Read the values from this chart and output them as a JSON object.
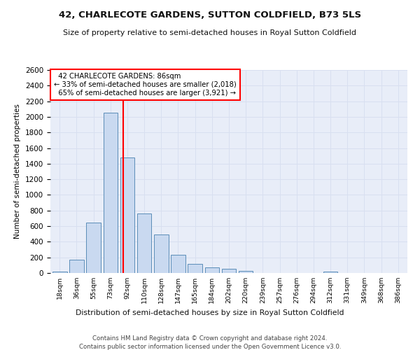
{
  "title": "42, CHARLECOTE GARDENS, SUTTON COLDFIELD, B73 5LS",
  "subtitle": "Size of property relative to semi-detached houses in Royal Sutton Coldfield",
  "xlabel": "Distribution of semi-detached houses by size in Royal Sutton Coldfield",
  "ylabel": "Number of semi-detached properties",
  "footer_line1": "Contains HM Land Registry data © Crown copyright and database right 2024.",
  "footer_line2": "Contains public sector information licensed under the Open Government Licence v3.0.",
  "bar_labels": [
    "18sqm",
    "36sqm",
    "55sqm",
    "73sqm",
    "92sqm",
    "110sqm",
    "128sqm",
    "147sqm",
    "165sqm",
    "184sqm",
    "202sqm",
    "220sqm",
    "239sqm",
    "257sqm",
    "276sqm",
    "294sqm",
    "312sqm",
    "331sqm",
    "349sqm",
    "368sqm",
    "386sqm"
  ],
  "bar_values": [
    20,
    170,
    650,
    2050,
    1480,
    760,
    490,
    235,
    120,
    70,
    50,
    25,
    0,
    0,
    0,
    0,
    20,
    0,
    0,
    0,
    0
  ],
  "bar_color": "#c9d9f0",
  "bar_edge_color": "#5b8db8",
  "property_label": "42 CHARLECOTE GARDENS: 86sqm",
  "pct_smaller": 33,
  "count_smaller": 2018,
  "pct_larger": 65,
  "count_larger": 3921,
  "vline_color": "red",
  "ylim": [
    0,
    2600
  ],
  "yticks": [
    0,
    200,
    400,
    600,
    800,
    1000,
    1200,
    1400,
    1600,
    1800,
    2000,
    2200,
    2400,
    2600
  ],
  "grid_color": "#d8dff0",
  "bg_color": "#e8edf8"
}
